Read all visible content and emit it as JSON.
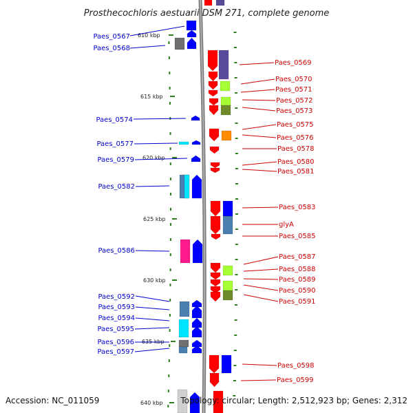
{
  "title": "Prosthecochloris aestuarii DSM 271, complete genome",
  "accession": "Accession: NC_011059",
  "topology": "Topology: circular; Length: 2,512,923 bp; Genes: 2,312",
  "colors": {
    "forward": "#ff0000",
    "reverse": "#0000ff",
    "slate": "#5a4a9a",
    "lime": "#a6ff33",
    "olive": "#6e8a2a",
    "orange": "#ff8c00",
    "steel": "#4a7fb0",
    "cyan": "#00e5ff",
    "magenta": "#ff1a8c",
    "gray": "#707070",
    "backbone": "#888888",
    "tick": "#2e7d1e"
  },
  "ticks": [
    "610 kbp",
    "615 kbp",
    "620 kbp",
    "625 kbp",
    "630 kbp",
    "635 kbp",
    "640 kbp"
  ],
  "left_labels": [
    "Paes_0567",
    "Paes_0568",
    "Paes_0574",
    "Paes_0577",
    "Paes_0579",
    "Paes_0582",
    "Paes_0586",
    "Paes_0592",
    "Paes_0593",
    "Paes_0594",
    "Paes_0595",
    "Paes_0596",
    "Paes_0597"
  ],
  "right_labels": [
    "Paes_0569",
    "Paes_0570",
    "Paes_0571",
    "Paes_0572",
    "Paes_0573",
    "Paes_0575",
    "Paes_0576",
    "Paes_0578",
    "Paes_0580",
    "Paes_0581",
    "Paes_0583",
    "glyA",
    "Paes_0585",
    "Paes_0587",
    "Paes_0588",
    "Paes_0589",
    "Paes_0590",
    "Paes_0591",
    "Paes_0598",
    "Paes_0599"
  ]
}
